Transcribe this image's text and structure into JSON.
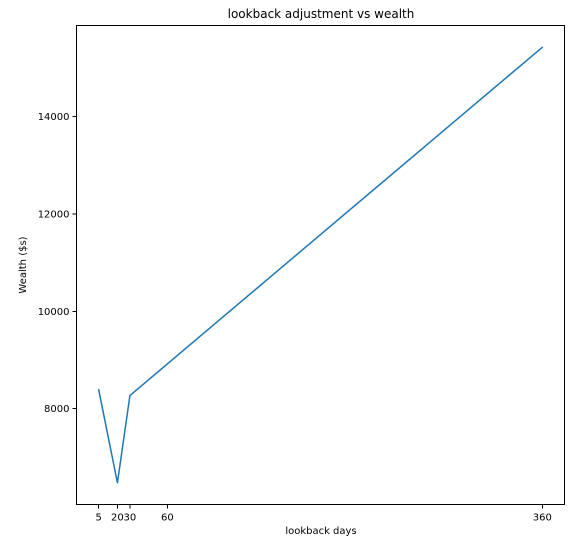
{
  "chart_data": {
    "type": "line",
    "title": "lookback adjustment vs wealth",
    "xlabel": "lookback days",
    "ylabel": "Wealth ($s)",
    "series": [
      {
        "color": "#1f77b4",
        "x": [
          5,
          20,
          30,
          360
        ],
        "y": [
          8390,
          6480,
          8270,
          15420
        ]
      }
    ],
    "x_ticks": [
      5,
      20,
      30,
      60,
      360
    ],
    "x_tick_labels": [
      "5",
      "20",
      "30",
      "60",
      "360"
    ],
    "y_ticks": [
      8000,
      10000,
      12000,
      14000
    ],
    "y_tick_labels": [
      "8000",
      "10000",
      "12000",
      "14000"
    ],
    "xlim": [
      -12.75,
      377.75
    ],
    "ylim": [
      6033,
      15867
    ],
    "grid": false,
    "legend": "none"
  }
}
